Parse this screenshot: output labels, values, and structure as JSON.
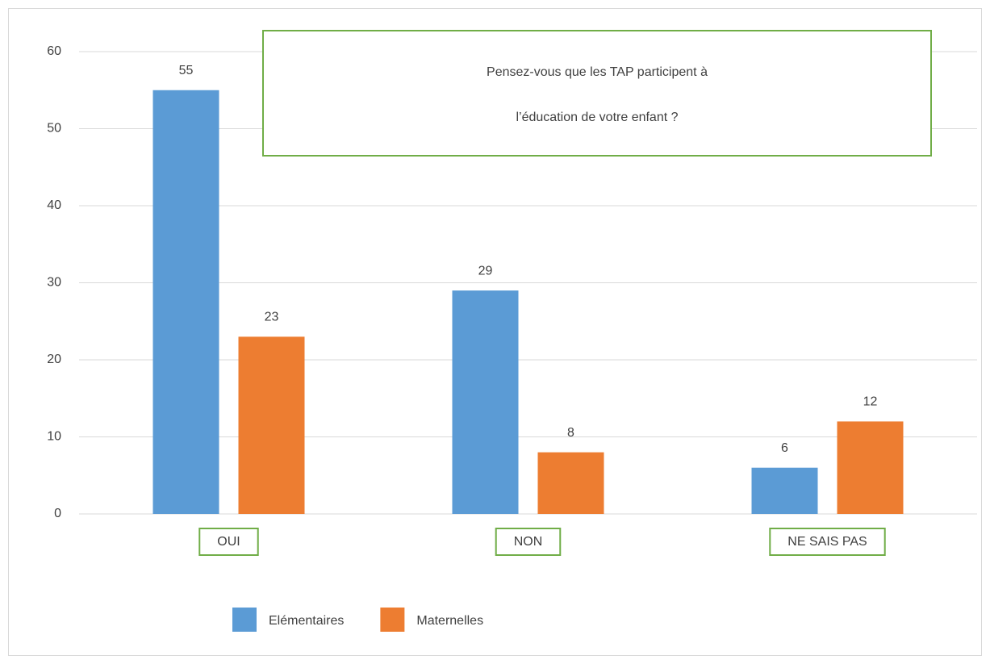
{
  "chart_data": {
    "type": "bar",
    "title": [
      "Pensez-vous que les TAP participent à",
      "l’éducation de votre enfant ?"
    ],
    "categories": [
      "OUI",
      "NON",
      "NE SAIS PAS"
    ],
    "series": [
      {
        "name": "Elémentaires",
        "color": "#5b9bd5",
        "values": [
          55,
          29,
          6
        ]
      },
      {
        "name": "Maternelles",
        "color": "#ed7d31",
        "values": [
          23,
          8,
          12
        ]
      }
    ],
    "ylim": [
      0,
      60
    ],
    "yticks": [
      0,
      10,
      20,
      30,
      40,
      50,
      60
    ],
    "grid": true,
    "legend": "bottom"
  }
}
